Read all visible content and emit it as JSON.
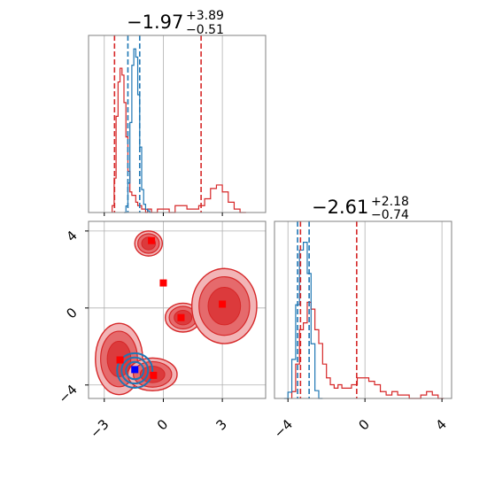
{
  "chart_data": {
    "type": "corner",
    "parameters": [
      {
        "title": {
          "median": "−1.97",
          "plus": "+3.89",
          "minus": "−0.51"
        },
        "range": [
          -3.8,
          5.2
        ],
        "ticks": [
          {
            "value": -3,
            "label": "−3"
          },
          {
            "value": 0,
            "label": "0"
          },
          {
            "value": 3,
            "label": "3"
          }
        ],
        "quantiles_red": [
          -2.48,
          1.92
        ],
        "quantiles_blue": [
          -1.8,
          -1.2
        ],
        "hist_red": {
          "bins": [
            -2.6,
            -2.5,
            -2.4,
            -2.3,
            -2.2,
            -2.1,
            -2.0,
            -1.9,
            -1.8,
            -1.7,
            -1.6,
            -1.5,
            -1.4,
            -1.3,
            -1.2,
            -1.1,
            -1.0,
            -0.9,
            -0.8,
            -0.6,
            -0.3,
            0.0,
            0.3,
            0.6,
            0.9,
            1.2,
            1.5,
            1.8,
            2.1,
            2.4,
            2.7,
            3.0,
            3.3,
            3.6,
            3.9
          ],
          "values": [
            0.02,
            0.1,
            0.28,
            0.38,
            0.42,
            0.4,
            0.32,
            0.22,
            0.12,
            0.06,
            0.05,
            0.05,
            0.03,
            0.02,
            0.02,
            0.01,
            0.01,
            0.0,
            0.01,
            0.0,
            0.01,
            0.01,
            0.0,
            0.02,
            0.02,
            0.01,
            0.01,
            0.02,
            0.04,
            0.07,
            0.08,
            0.06,
            0.03,
            0.01,
            0.0
          ]
        },
        "hist_blue": {
          "bins": [
            -2.0,
            -1.9,
            -1.8,
            -1.7,
            -1.6,
            -1.5,
            -1.4,
            -1.3,
            -1.2,
            -1.1,
            -1.0,
            -0.9,
            -0.8,
            -0.7
          ],
          "values": [
            0.0,
            0.04,
            0.18,
            0.55,
            0.9,
            1.0,
            0.95,
            0.72,
            0.4,
            0.14,
            0.05,
            0.02,
            0.01,
            0.0
          ]
        }
      },
      {
        "title": {
          "median": "−2.61",
          "plus": "+2.18",
          "minus": "−0.74"
        },
        "range": [
          -4.7,
          4.5
        ],
        "ticks": [
          {
            "value": -4,
            "label": "−4"
          },
          {
            "value": 0,
            "label": "0"
          },
          {
            "value": 4,
            "label": "4"
          }
        ],
        "quantiles_red": [
          -3.35,
          -0.43
        ],
        "quantiles_blue": [
          -3.5,
          -2.9
        ],
        "hist_red": {
          "bins": [
            -3.8,
            -3.6,
            -3.4,
            -3.2,
            -3.0,
            -2.8,
            -2.6,
            -2.4,
            -2.2,
            -2.0,
            -1.8,
            -1.6,
            -1.4,
            -1.2,
            -1.0,
            -0.7,
            -0.4,
            -0.1,
            0.2,
            0.5,
            0.8,
            1.1,
            1.4,
            1.7,
            2.0,
            2.3,
            2.6,
            2.9,
            3.2,
            3.5,
            3.8
          ],
          "values": [
            0.02,
            0.1,
            0.2,
            0.22,
            0.28,
            0.26,
            0.2,
            0.16,
            0.1,
            0.06,
            0.04,
            0.03,
            0.04,
            0.03,
            0.03,
            0.04,
            0.06,
            0.06,
            0.05,
            0.04,
            0.02,
            0.01,
            0.02,
            0.01,
            0.01,
            0.0,
            0.0,
            0.01,
            0.02,
            0.01,
            0.0
          ]
        },
        "hist_blue": {
          "bins": [
            -4.2,
            -4.0,
            -3.8,
            -3.6,
            -3.4,
            -3.2,
            -3.0,
            -2.8,
            -2.6,
            -2.4
          ],
          "values": [
            0.0,
            0.04,
            0.25,
            0.6,
            0.95,
            1.0,
            0.8,
            0.35,
            0.05,
            0.0
          ]
        }
      }
    ],
    "scatter": {
      "red_markers": [
        {
          "x": -0.6,
          "y": 3.5
        },
        {
          "x": 0.0,
          "y": 1.3
        },
        {
          "x": 0.9,
          "y": -0.5
        },
        {
          "x": 3.0,
          "y": 0.2
        },
        {
          "x": -2.2,
          "y": -2.7
        },
        {
          "x": -0.5,
          "y": -3.5
        }
      ],
      "blue_markers": [
        {
          "x": -1.45,
          "y": -3.2
        }
      ],
      "red_contours": [
        {
          "cx": -0.75,
          "cy": 3.35,
          "rx": 0.7,
          "ry": 0.65
        },
        {
          "cx": 1.0,
          "cy": -0.5,
          "rx": 0.9,
          "ry": 0.75
        },
        {
          "cx": 3.1,
          "cy": 0.1,
          "rx": 1.65,
          "ry": 1.95
        },
        {
          "cx": -2.25,
          "cy": -2.65,
          "rx": 1.2,
          "ry": 1.85
        },
        {
          "cx": -0.55,
          "cy": -3.45,
          "rx": 1.25,
          "ry": 0.85
        }
      ],
      "blue_contours": [
        {
          "cx": -1.45,
          "cy": -3.25,
          "rx": 0.9,
          "ry": 0.9
        }
      ]
    },
    "colors": {
      "red": "#d62728",
      "blue": "#1f77b4",
      "grid": "#b0b0b0",
      "frame": "#808080"
    },
    "grid": true
  }
}
